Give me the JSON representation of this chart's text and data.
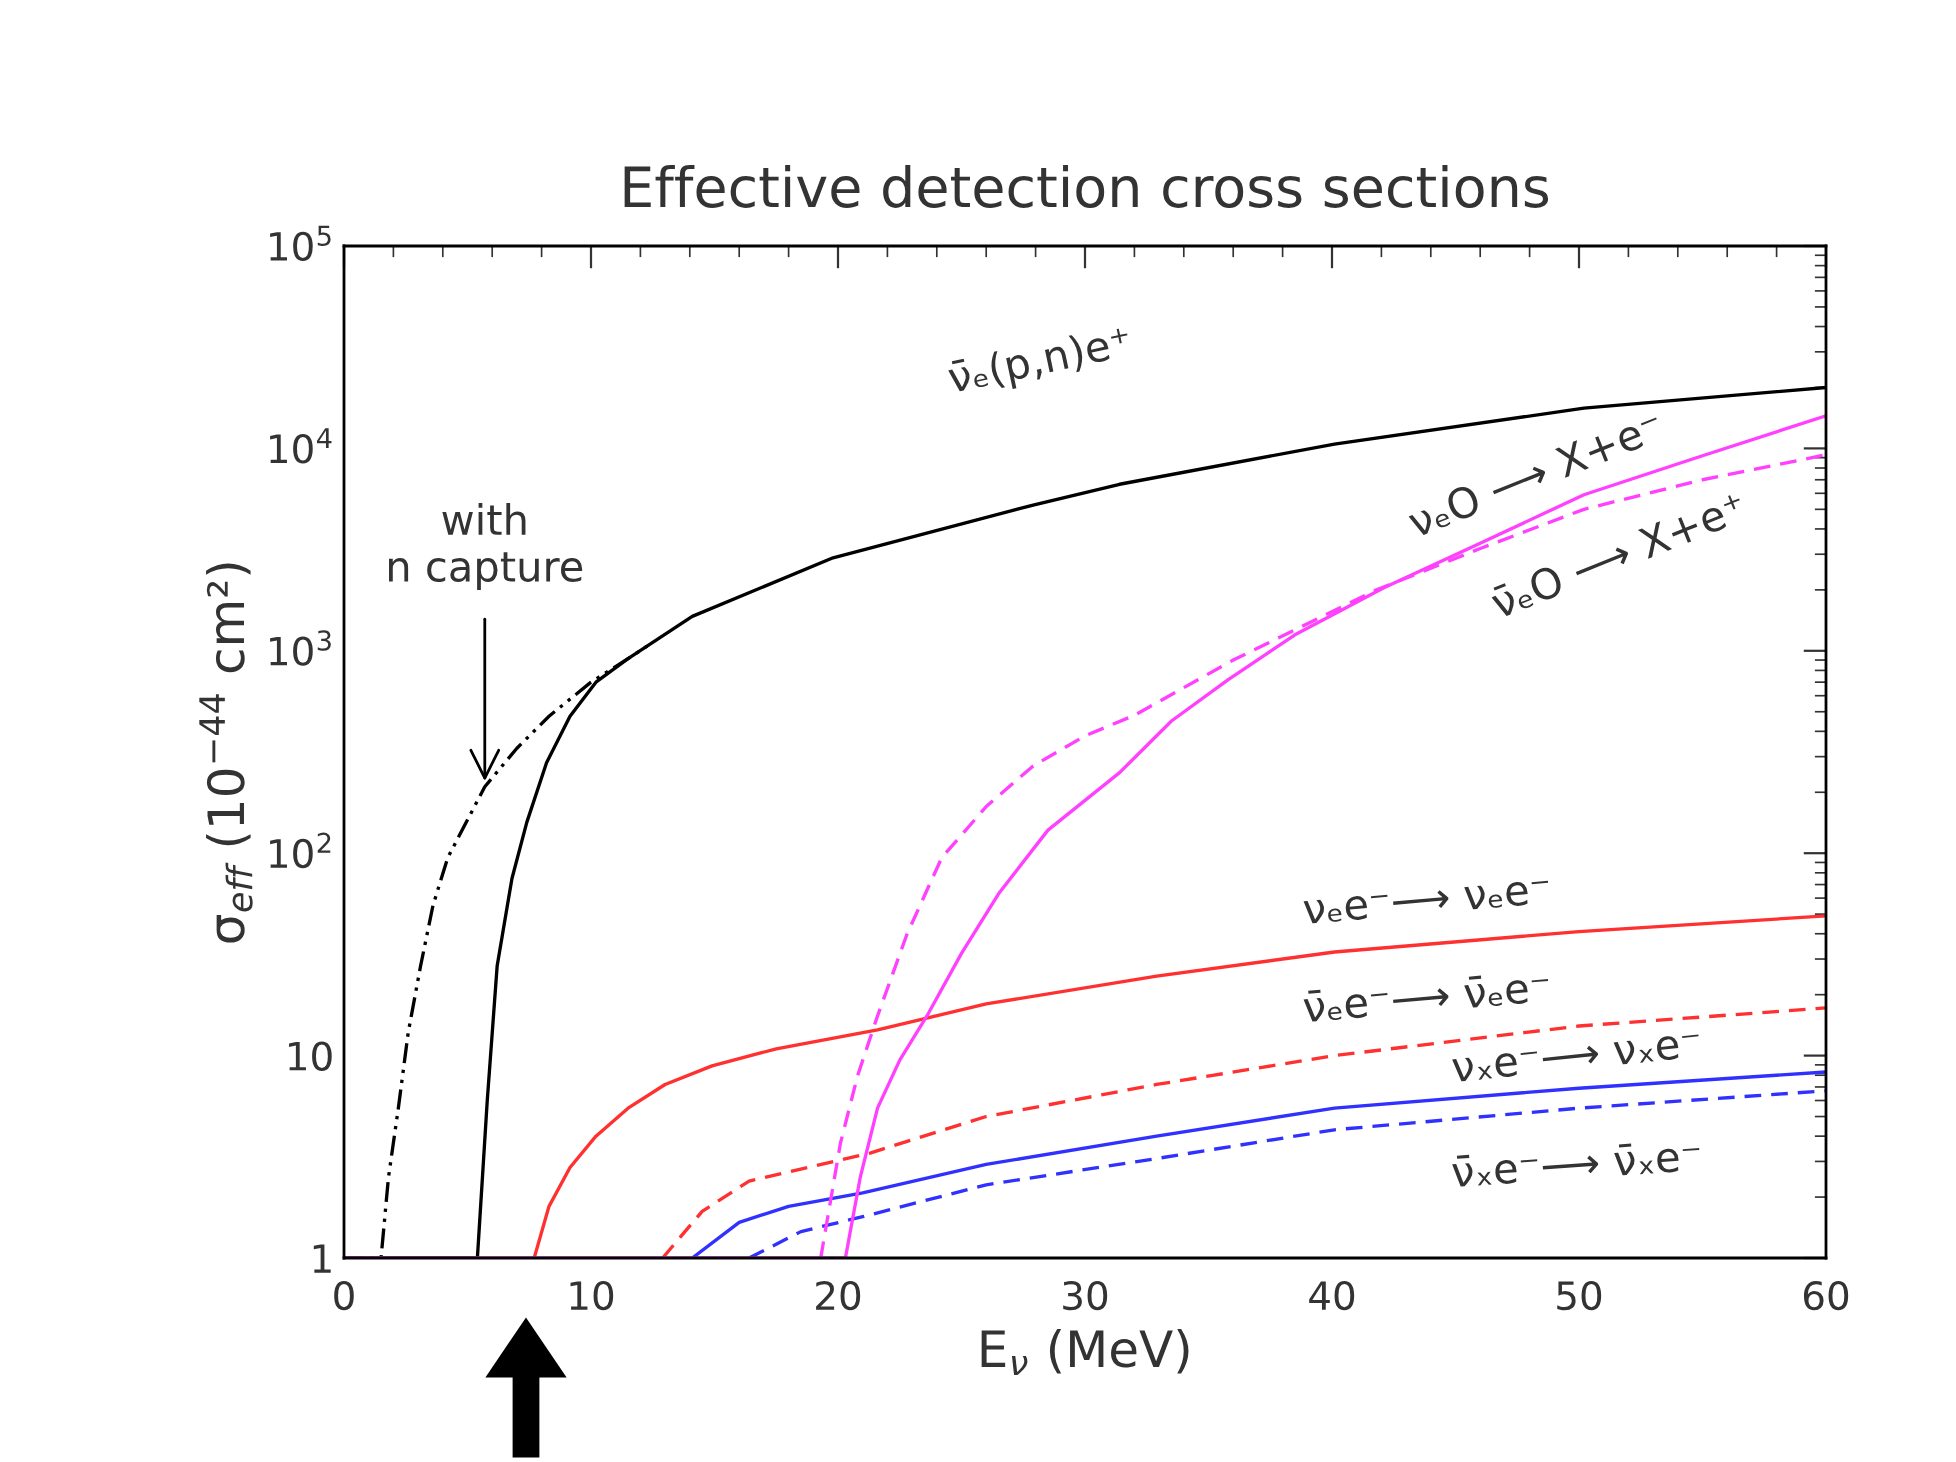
{
  "chart_data": {
    "type": "line",
    "title": "Effective detection cross sections",
    "xlabel": "E$_{ν}$ (MeV)",
    "ylabel": "σ$_{eff}$ (10$^{−44}$ cm²)",
    "log": "y",
    "xlim": [
      0,
      60
    ],
    "xticks": [
      0,
      10,
      20,
      30,
      40,
      50,
      60
    ],
    "ylim": [
      1,
      100000
    ],
    "yticks": [
      1,
      10,
      {
        "value": 100,
        "label": "10$^{2}$"
      },
      {
        "value": 1000,
        "label": "10$^{3}$"
      },
      {
        "value": 10000,
        "label": "10$^{4}$"
      },
      {
        "value": 100000,
        "label": "10$^{5}$"
      }
    ],
    "series": [
      {
        "color": "#000000",
        "line_style": "dashdot",
        "x": [
          0,
          1.5,
          1.8,
          2.2,
          2.6,
          3.1,
          3.6,
          4.2,
          5.7,
          7,
          8.3,
          10,
          11.5,
          12.5
        ],
        "values": [
          1,
          1,
          2.5,
          5.5,
          13,
          27.7,
          55,
          95,
          213,
          330,
          475,
          700,
          915,
          1100
        ]
      },
      {
        "name": "ν̄ₑ(p,n)e⁺",
        "color": "#000000",
        "line_style": "solid",
        "x": [
          0,
          5.4,
          5.8,
          6.2,
          6.8,
          7.4,
          8.2,
          9.15,
          10.2,
          11.5,
          14.1,
          19.8,
          27.9,
          31.4,
          40.1,
          50.2,
          60
        ],
        "values": [
          1,
          1,
          6,
          27.7,
          75,
          142,
          280,
          475,
          700,
          915,
          1480,
          2880,
          5250,
          6650,
          10500,
          15800,
          20000
        ]
      },
      {
        "name": "νₑe⁻⟶ νₑe⁻",
        "color": "#ff3030",
        "line_style": "solid",
        "x": [
          7.7,
          8.3,
          9.15,
          10.2,
          11.5,
          13,
          14.9,
          17.5,
          21.6,
          26,
          32.9,
          40.1,
          50,
          60
        ],
        "values": [
          1,
          1.8,
          2.8,
          4,
          5.5,
          7.2,
          8.9,
          10.8,
          13.4,
          18,
          24.7,
          32.5,
          41,
          49
        ]
      },
      {
        "name": "ν̄ₑe⁻⟶ ν̄ₑe⁻",
        "color": "#ff3030",
        "line_style": "dashed",
        "x": [
          12.9,
          14.5,
          16.4,
          21.3,
          26,
          32.9,
          40.1,
          50,
          60
        ],
        "values": [
          1,
          1.7,
          2.4,
          3.3,
          5,
          7.2,
          10,
          14,
          17.2
        ]
      },
      {
        "name": "νₓe⁻⟶ νₓe⁻",
        "color": "#3030ff",
        "line_style": "solid",
        "x": [
          14.1,
          16,
          18,
          21,
          26,
          32.9,
          40.1,
          50,
          60
        ],
        "values": [
          1,
          1.5,
          1.8,
          2.1,
          2.9,
          4.0,
          5.5,
          6.9,
          8.3
        ]
      },
      {
        "name": "ν̄ₓe⁻⟶ ν̄ₓe⁻",
        "color": "#3030ff",
        "line_style": "dashed",
        "x": [
          16.4,
          18.5,
          21,
          26,
          32.9,
          40.1,
          50,
          60
        ],
        "values": [
          1,
          1.35,
          1.6,
          2.3,
          3.1,
          4.3,
          5.5,
          6.7
        ]
      },
      {
        "name": "νₑO ⟶ X+e⁻",
        "color": "#ff40ff",
        "line_style": "solid",
        "x": [
          0,
          20.3,
          20.9,
          21.6,
          22.5,
          23.6,
          25,
          26.5,
          28.5,
          31.4,
          33.5,
          35.8,
          38.5,
          42.1,
          46,
          50.2,
          55,
          60
        ],
        "values": [
          1,
          1,
          2.5,
          5.5,
          9.5,
          15.7,
          32,
          63,
          130,
          250,
          450,
          720,
          1200,
          2050,
          3400,
          5900,
          9200,
          14500
        ]
      },
      {
        "name": "ν̄ₑO ⟶ X+e⁺",
        "color": "#ff40ff",
        "line_style": "dashed",
        "x": [
          19.3,
          20.1,
          20.8,
          21.6,
          22.8,
          24.2,
          26,
          27.9,
          30,
          32,
          36,
          41.8,
          46,
          50.2,
          55,
          60
        ],
        "values": [
          1,
          3.7,
          8,
          15.7,
          40,
          95,
          170,
          270,
          380,
          480,
          900,
          2000,
          3200,
          5000,
          7000,
          9300
        ]
      }
    ],
    "annotations": [
      {
        "text": "with\nn capture",
        "x": 5.7,
        "y": 213
      }
    ]
  }
}
